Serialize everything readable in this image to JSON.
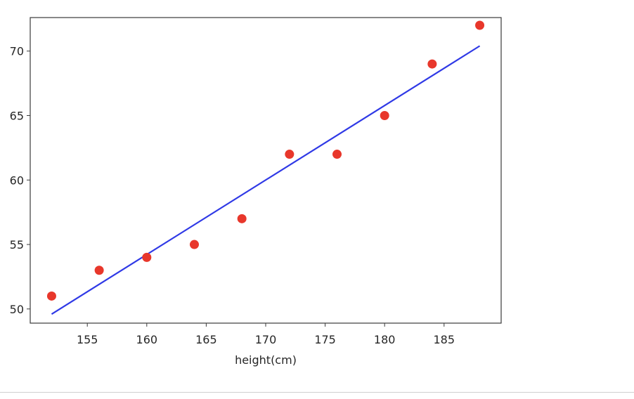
{
  "chart_data": {
    "type": "scatter",
    "title": "",
    "xlabel": "height(cm)",
    "ylabel": "",
    "xlim": [
      150.2,
      189.8
    ],
    "ylim": [
      48.9,
      72.6
    ],
    "xticks": [
      155,
      160,
      165,
      170,
      175,
      180,
      185
    ],
    "yticks": [
      50,
      55,
      60,
      65,
      70
    ],
    "grid": false,
    "legend": "none",
    "series": [
      {
        "type": "scatter",
        "color": "#e8372b",
        "x": [
          152,
          156,
          160,
          164,
          168,
          172,
          176,
          180,
          184,
          188
        ],
        "y": [
          51,
          53,
          54,
          55,
          57,
          62,
          62,
          65,
          69,
          72
        ]
      },
      {
        "type": "line",
        "color": "#2f39e6",
        "x": [
          152,
          188
        ],
        "y": [
          49.6,
          70.4
        ]
      }
    ]
  }
}
